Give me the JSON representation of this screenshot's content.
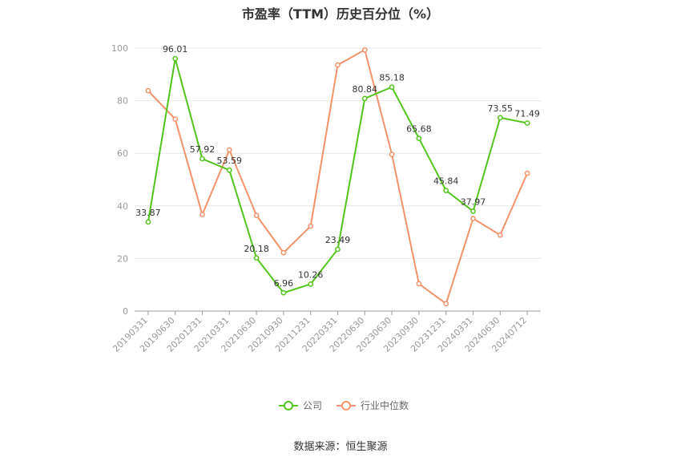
{
  "chart_data": {
    "type": "line",
    "title": "市盈率（TTM）历史百分位（%）",
    "categories": [
      "20190331",
      "20190630",
      "20201231",
      "20210331",
      "20210630",
      "20210930",
      "20211231",
      "20220331",
      "20220630",
      "20230630",
      "20230930",
      "20231231",
      "20240331",
      "20240630",
      "20240712"
    ],
    "ylim": [
      0,
      100
    ],
    "yticks": [
      0,
      20,
      40,
      60,
      80,
      100
    ],
    "grid": true,
    "legend_position": "bottom",
    "series": [
      {
        "name": "公司",
        "color": "#52c41a",
        "values": [
          33.87,
          96.01,
          57.92,
          53.59,
          20.18,
          6.96,
          10.26,
          23.49,
          80.84,
          85.18,
          65.68,
          45.84,
          37.97,
          73.55,
          71.49
        ],
        "labels": [
          "33.87",
          "96.01",
          "57.92",
          "53.59",
          "20.18",
          "6.96",
          "10.26",
          "23.49",
          "80.84",
          "85.18",
          "65.68",
          "45.84",
          "37.97",
          "73.55",
          "71.49"
        ]
      },
      {
        "name": "行业中位数",
        "color": "#f4926a",
        "values": [
          83.8,
          73.0,
          36.7,
          61.3,
          36.4,
          22.2,
          32.3,
          93.6,
          99.3,
          59.6,
          10.4,
          2.8,
          35.2,
          28.9,
          52.4
        ]
      }
    ]
  },
  "source": "数据来源：恒生聚源"
}
